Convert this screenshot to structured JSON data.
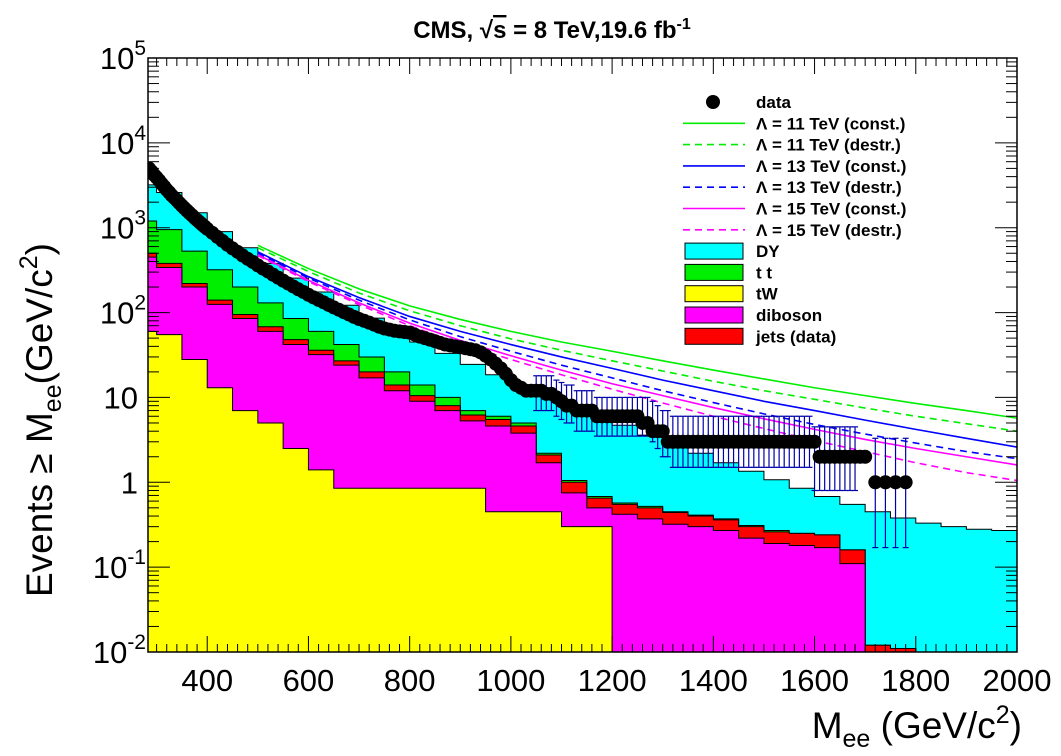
{
  "chart_data": {
    "type": "area",
    "title_prefix": "CMS, ",
    "title_sqrt": "s",
    "title_suffix": " = 8 TeV,19.6 fb",
    "title_sup": "-1",
    "ylabel_main": "Events ≥ M",
    "ylabel_sub": "ee",
    "ylabel_unit_start": "(GeV/c",
    "ylabel_unit_sup": "2",
    "ylabel_unit_end": ")",
    "xlabel_main": "M",
    "xlabel_sub": "ee",
    "xlabel_unit_start": " (GeV/c",
    "xlabel_unit_sup": "2",
    "xlabel_unit_end": ")",
    "xlim": [
      283,
      2000
    ],
    "ylim": [
      0.01,
      100000
    ],
    "log_y": true,
    "grid": false,
    "legend_position": "top-right",
    "x_ticks": [
      {
        "value": 400,
        "label": "400"
      },
      {
        "value": 600,
        "label": "600"
      },
      {
        "value": 800,
        "label": "800"
      },
      {
        "value": 1000,
        "label": "1000"
      },
      {
        "value": 1200,
        "label": "1200"
      },
      {
        "value": 1400,
        "label": "1400"
      },
      {
        "value": 1600,
        "label": "1600"
      },
      {
        "value": 1800,
        "label": "1800"
      },
      {
        "value": 2000,
        "label": "2000"
      }
    ],
    "y_ticks": [
      {
        "value": 0.01,
        "base": "10",
        "exp": "-2"
      },
      {
        "value": 0.1,
        "base": "10",
        "exp": "-1"
      },
      {
        "value": 1,
        "base": "1",
        "exp": ""
      },
      {
        "value": 10,
        "base": "10",
        "exp": ""
      },
      {
        "value": 100,
        "base": "10",
        "exp": "2"
      },
      {
        "value": 1000,
        "base": "10",
        "exp": "3"
      },
      {
        "value": 10000,
        "base": "10",
        "exp": "4"
      },
      {
        "value": 100000,
        "base": "10",
        "exp": "5"
      }
    ],
    "stack_x": [
      283,
      300,
      350,
      400,
      450,
      500,
      550,
      600,
      650,
      700,
      750,
      800,
      850,
      900,
      950,
      1000,
      1050,
      1100,
      1150,
      1200,
      1250,
      1300,
      1350,
      1400,
      1450,
      1500,
      1550,
      1600,
      1650,
      1700,
      1750,
      1800,
      1850,
      1900,
      1950,
      2000
    ],
    "stacks": [
      {
        "name": "jets (data)",
        "color": "#ff0000",
        "values": [
          500,
          380,
          220,
          140,
          95,
          68,
          48,
          36,
          27,
          20,
          14,
          10.5,
          8,
          6.2,
          5.5,
          4.6,
          2.1,
          1.0,
          0.65,
          0.55,
          0.5,
          0.44,
          0.4,
          0.36,
          0.3,
          0.26,
          0.25,
          0.24,
          0.16,
          0.012,
          0.011,
          0.01,
          0.01,
          0.01,
          0.01,
          0.01
        ]
      },
      {
        "name": "diboson",
        "color": "#ff00ff",
        "values": [
          450,
          340,
          200,
          125,
          85,
          60,
          42,
          32,
          24,
          17,
          12,
          9,
          7,
          5.3,
          4.6,
          3.8,
          1.7,
          0.75,
          0.5,
          0.42,
          0.37,
          0.32,
          0.3,
          0.27,
          0.22,
          0.19,
          0.18,
          0.17,
          0.11,
          0.01,
          0.01,
          0.01,
          0.01,
          0.01,
          0.01,
          0.01
        ]
      },
      {
        "name": "tW",
        "color": "#ffff00",
        "values": [
          60,
          55,
          28,
          13,
          7,
          5,
          2.5,
          1.4,
          0.85,
          0.85,
          0.85,
          0.85,
          0.85,
          0.85,
          0.45,
          0.45,
          0.45,
          0.3,
          0.3,
          0.01,
          0.01,
          0.01,
          0.01,
          0.01,
          0.01,
          0.01,
          0.01,
          0.01,
          0.01,
          0.01,
          0.01,
          0.01,
          0.01,
          0.01,
          0.01,
          0.01
        ]
      },
      {
        "name": "t t",
        "color": "#00ee00",
        "values": [
          1200,
          950,
          530,
          320,
          200,
          130,
          85,
          60,
          42,
          30,
          20,
          14,
          10,
          7,
          6,
          5,
          2.2,
          1.05,
          0.68,
          0.57,
          0.52,
          0.45,
          0.41,
          0.37,
          0.31,
          0.27,
          0.25,
          0.24,
          0.16,
          0.012,
          0.011,
          0.01,
          0.01,
          0.01,
          0.01,
          0.01
        ]
      },
      {
        "name": "DY",
        "color": "#00ffff",
        "values": [
          3200,
          2600,
          1500,
          900,
          580,
          380,
          255,
          175,
          122,
          86,
          62,
          45,
          33,
          24.5,
          18.5,
          13.8,
          10.5,
          8,
          6.1,
          4.7,
          3.6,
          2.8,
          2.2,
          1.7,
          1.35,
          1.07,
          0.85,
          0.68,
          0.55,
          0.45,
          0.38,
          0.33,
          0.3,
          0.28,
          0.27,
          0.26
        ]
      }
    ],
    "data_points": {
      "name": "data",
      "x": [
        285,
        290,
        295,
        300,
        305,
        310,
        315,
        320,
        325,
        330,
        335,
        340,
        345,
        350,
        355,
        360,
        365,
        370,
        375,
        380,
        385,
        390,
        395,
        400,
        410,
        420,
        430,
        440,
        450,
        460,
        470,
        480,
        490,
        500,
        510,
        520,
        530,
        540,
        550,
        560,
        570,
        580,
        590,
        600,
        610,
        620,
        630,
        640,
        650,
        660,
        670,
        680,
        690,
        700,
        710,
        720,
        730,
        740,
        750,
        760,
        770,
        780,
        790,
        800,
        810,
        820,
        830,
        840,
        850,
        860,
        870,
        880,
        890,
        900,
        910,
        920,
        930,
        940,
        950,
        960,
        970,
        980,
        990,
        1000,
        1010,
        1020,
        1030,
        1040,
        1050,
        1060,
        1070,
        1080,
        1090,
        1100,
        1110,
        1120,
        1130,
        1140,
        1150,
        1160,
        1170,
        1180,
        1190,
        1200,
        1210,
        1220,
        1230,
        1240,
        1250,
        1260,
        1270,
        1280,
        1290,
        1300,
        1310,
        1320,
        1330,
        1340,
        1350,
        1360,
        1370,
        1380,
        1390,
        1400,
        1410,
        1420,
        1430,
        1440,
        1450,
        1460,
        1470,
        1480,
        1490,
        1500,
        1510,
        1520,
        1530,
        1540,
        1550,
        1560,
        1570,
        1580,
        1590,
        1600,
        1610,
        1620,
        1630,
        1640,
        1650,
        1660,
        1670,
        1680,
        1690,
        1700,
        1720,
        1740,
        1760,
        1780
      ],
      "y": [
        5000,
        4600,
        4200,
        3900,
        3600,
        3300,
        3050,
        2800,
        2600,
        2400,
        2250,
        2100,
        1950,
        1820,
        1700,
        1590,
        1490,
        1400,
        1310,
        1230,
        1160,
        1090,
        1030,
        970,
        870,
        780,
        700,
        630,
        570,
        520,
        470,
        430,
        395,
        360,
        330,
        305,
        280,
        258,
        238,
        220,
        203,
        188,
        175,
        162,
        151,
        141,
        132,
        123,
        115,
        108,
        101,
        95,
        89,
        84,
        80,
        76,
        72,
        68,
        65,
        63,
        61,
        60,
        59,
        58,
        55,
        52,
        50,
        48,
        46,
        44,
        42,
        41,
        40,
        39,
        38,
        37,
        36,
        34,
        31,
        28,
        25,
        22,
        19,
        16,
        14,
        13,
        12,
        12,
        12,
        12,
        11,
        11,
        10,
        9,
        8,
        8,
        7,
        7,
        7,
        7,
        6,
        6,
        6,
        6,
        6,
        6,
        6,
        6,
        6,
        5,
        5,
        4,
        4,
        4,
        3,
        3,
        3,
        3,
        3,
        3,
        3,
        3,
        3,
        3,
        3,
        3,
        3,
        3,
        3,
        3,
        3,
        3,
        3,
        3,
        3,
        3,
        3,
        3,
        3,
        3,
        3,
        3,
        3,
        3,
        2,
        2,
        2,
        2,
        2,
        2,
        2,
        2,
        2,
        2,
        1,
        1,
        1,
        1
      ],
      "color": "#000000"
    },
    "error_bars": {
      "x": [
        1050,
        1060,
        1070,
        1080,
        1090,
        1100,
        1110,
        1120,
        1130,
        1140,
        1150,
        1160,
        1170,
        1180,
        1190,
        1200,
        1210,
        1220,
        1230,
        1240,
        1250,
        1260,
        1270,
        1280,
        1290,
        1300,
        1310,
        1320,
        1330,
        1340,
        1350,
        1360,
        1370,
        1380,
        1390,
        1400,
        1410,
        1420,
        1430,
        1440,
        1450,
        1460,
        1470,
        1480,
        1490,
        1500,
        1510,
        1520,
        1530,
        1540,
        1550,
        1560,
        1570,
        1580,
        1590,
        1600,
        1610,
        1620,
        1630,
        1640,
        1650,
        1660,
        1670,
        1680,
        1720,
        1740,
        1760,
        1780
      ],
      "low": [
        7,
        7,
        7,
        7,
        6,
        5.5,
        5,
        5,
        4,
        4,
        4,
        4,
        3.5,
        3.5,
        3.5,
        3.5,
        3.5,
        3.5,
        3.5,
        3.5,
        3.5,
        3.5,
        3.5,
        3,
        2.5,
        2,
        2,
        1.5,
        1.5,
        1.5,
        1.5,
        1.5,
        1.5,
        1.5,
        1.5,
        1.5,
        1.5,
        1.5,
        1.5,
        1.5,
        1.5,
        1.5,
        1.5,
        1.5,
        1.5,
        1.5,
        1.5,
        1.5,
        1.5,
        1.5,
        1.5,
        1.5,
        1.5,
        1.5,
        1.5,
        0.8,
        0.8,
        0.8,
        0.8,
        0.8,
        0.8,
        0.8,
        0.8,
        0.8,
        0.17,
        0.17,
        0.17,
        0.17
      ],
      "high": [
        18,
        18,
        18,
        18,
        16,
        15,
        14,
        14,
        12,
        12,
        12,
        12,
        10,
        10,
        10,
        10,
        10,
        10,
        10,
        10,
        10,
        10,
        10,
        9,
        8,
        7,
        7,
        6,
        6,
        6,
        6,
        6,
        6,
        6,
        6,
        6,
        6,
        6,
        6,
        6,
        6,
        6,
        6,
        6,
        6,
        6,
        6,
        6,
        6,
        6,
        6,
        6,
        6,
        6,
        6,
        4.5,
        4.5,
        4.5,
        4.5,
        4.5,
        4.5,
        4.5,
        4.5,
        4.5,
        3.3,
        3.3,
        3.3,
        3.3
      ],
      "color": "#0000aa"
    },
    "signal_x": [
      500,
      600,
      700,
      800,
      900,
      1000,
      1100,
      1200,
      1300,
      1400,
      1500,
      1600,
      1700,
      1800,
      1900,
      2000
    ],
    "signal_lines": [
      {
        "name": "Λ = 11 TeV (const.)",
        "color": "#00ee00",
        "dash": "solid",
        "values": [
          620,
          330,
          190,
          120,
          83,
          60,
          45,
          35,
          27,
          21,
          16.5,
          13,
          10.5,
          8.5,
          7,
          5.7
        ]
      },
      {
        "name": "Λ = 11 TeV (destr.)",
        "color": "#00ee00",
        "dash": "dashed",
        "values": [
          580,
          305,
          170,
          105,
          70,
          49,
          36,
          27,
          20.5,
          15.5,
          12,
          9.5,
          7.5,
          6,
          4.9,
          4
        ]
      },
      {
        "name": "Λ = 13 TeV (const.)",
        "color": "#0000ff",
        "dash": "solid",
        "values": [
          520,
          265,
          150,
          90,
          60,
          42,
          30,
          22,
          16,
          12,
          9,
          7,
          5.4,
          4.2,
          3.3,
          2.6
        ]
      },
      {
        "name": "Λ = 13 TeV (destr.)",
        "color": "#0000ff",
        "dash": "dashed",
        "values": [
          500,
          255,
          140,
          82,
          52,
          35,
          24,
          17,
          12,
          8.7,
          6.4,
          4.8,
          3.7,
          2.9,
          2.3,
          1.9
        ]
      },
      {
        "name": "Λ = 15 TeV (const.)",
        "color": "#ff00ff",
        "dash": "solid",
        "values": [
          480,
          240,
          130,
          75,
          47,
          31,
          21,
          14.5,
          10.5,
          7.6,
          5.6,
          4.2,
          3.2,
          2.5,
          2,
          1.6
        ]
      },
      {
        "name": "Λ = 15 TeV (destr.)",
        "color": "#ff00ff",
        "dash": "dashed",
        "values": [
          470,
          232,
          124,
          70,
          43,
          28,
          18.5,
          12.5,
          8.6,
          6,
          4.3,
          3.1,
          2.3,
          1.7,
          1.3,
          1.05
        ]
      }
    ],
    "legend": [
      {
        "label": "data",
        "kind": "marker",
        "color": "#000000"
      },
      {
        "label": "Λ = 11 TeV (const.)",
        "kind": "line",
        "color": "#00ee00",
        "dash": "solid"
      },
      {
        "label": "Λ = 11 TeV (destr.)",
        "kind": "line",
        "color": "#00ee00",
        "dash": "dashed"
      },
      {
        "label": "Λ = 13 TeV (const.)",
        "kind": "line",
        "color": "#0000ff",
        "dash": "solid"
      },
      {
        "label": "Λ = 13 TeV (destr.)",
        "kind": "line",
        "color": "#0000ff",
        "dash": "dashed"
      },
      {
        "label": "Λ = 15 TeV (const.)",
        "kind": "line",
        "color": "#ff00ff",
        "dash": "solid"
      },
      {
        "label": "Λ = 15 TeV (destr.)",
        "kind": "line",
        "color": "#ff00ff",
        "dash": "dashed"
      },
      {
        "label": "DY",
        "kind": "box",
        "color": "#00ffff"
      },
      {
        "label": "t t",
        "kind": "box",
        "color": "#00ee00"
      },
      {
        "label": "tW",
        "kind": "box",
        "color": "#ffff00"
      },
      {
        "label": "diboson",
        "kind": "box",
        "color": "#ff00ff"
      },
      {
        "label": "jets (data)",
        "kind": "box",
        "color": "#ff0000"
      }
    ]
  }
}
